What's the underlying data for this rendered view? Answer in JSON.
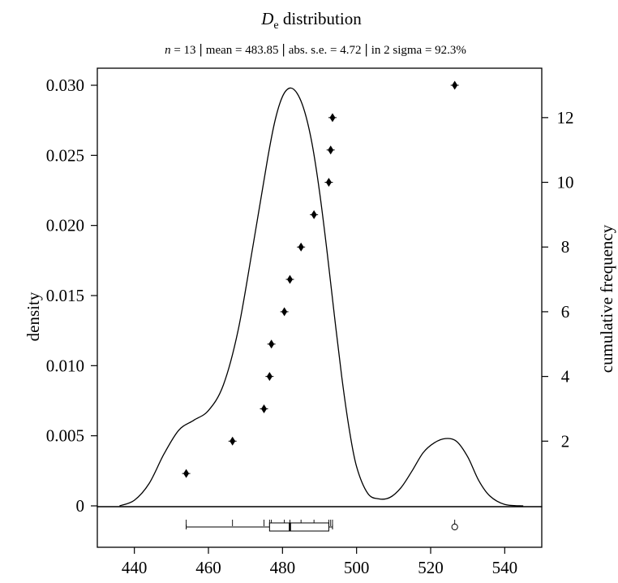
{
  "chart_data": {
    "type": "line",
    "title_main": "D",
    "title_sub": "e",
    "title_rest": " distribution",
    "subtitle": {
      "n_label": "n",
      "n_text": " = 13",
      "mean_text": "mean = 483.85",
      "se_text": "abs. s.e. = 4.72",
      "sigma_text": "in 2 sigma = 92.3%"
    },
    "xlabel": "",
    "ylabel_left": "density",
    "ylabel_right": "cumulative frequency",
    "xlim": [
      430,
      550
    ],
    "ylim_left": [
      0,
      0.03
    ],
    "ylim_right": [
      0,
      13
    ],
    "x_ticks": [
      "440",
      "460",
      "480",
      "500",
      "520",
      "540"
    ],
    "y_left_ticks": [
      "0",
      "0.005",
      "0.010",
      "0.015",
      "0.020",
      "0.025",
      "0.030"
    ],
    "y_right_ticks": [
      "2",
      "4",
      "6",
      "8",
      "10",
      "12"
    ],
    "density_curve": {
      "x": [
        436,
        440,
        444,
        448,
        452,
        456,
        460,
        464,
        468,
        472,
        476,
        478,
        480,
        482,
        484,
        486,
        488,
        490,
        492,
        494,
        496,
        498,
        500,
        503,
        506,
        509,
        512,
        515,
        518,
        521,
        524,
        527,
        530,
        533,
        536,
        540,
        545
      ],
      "y": [
        0.0,
        0.0004,
        0.0016,
        0.0037,
        0.0054,
        0.0061,
        0.0068,
        0.0086,
        0.0125,
        0.0185,
        0.0248,
        0.0275,
        0.0292,
        0.0298,
        0.0294,
        0.0281,
        0.0258,
        0.0224,
        0.0182,
        0.0136,
        0.0092,
        0.0055,
        0.0028,
        0.0009,
        0.0005,
        0.0006,
        0.0013,
        0.0025,
        0.0038,
        0.0045,
        0.0048,
        0.0046,
        0.0035,
        0.0018,
        0.0007,
        0.0001,
        0.0
      ]
    },
    "cumulative_points": {
      "x": [
        454,
        466.5,
        475,
        476.5,
        477,
        480.5,
        482,
        485,
        488.5,
        492.5,
        493,
        493.5,
        526.5
      ],
      "y": [
        1,
        2,
        3,
        4,
        5,
        6,
        7,
        8,
        9,
        10,
        11,
        12,
        13
      ]
    },
    "rug": [
      454,
      466.5,
      475,
      476.5,
      477,
      480.5,
      482,
      485,
      488.5,
      492.5,
      493,
      493.5,
      526.5
    ],
    "boxplot": {
      "whisker_low": 454,
      "q1": 476.5,
      "median": 482,
      "q3": 492.5,
      "whisker_high": 493.5,
      "outliers": [
        526.5
      ]
    },
    "grid": false
  }
}
